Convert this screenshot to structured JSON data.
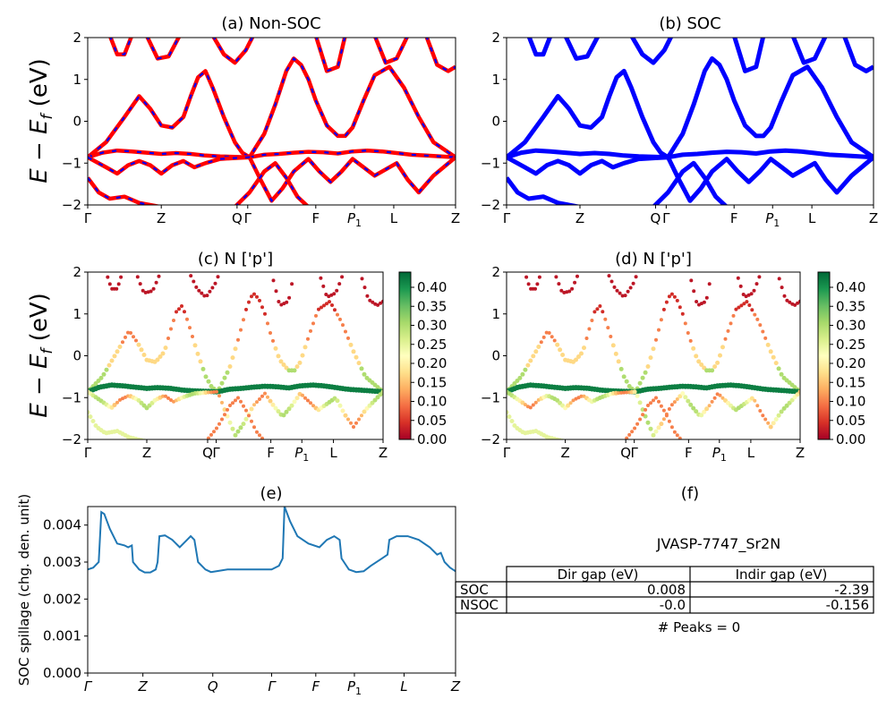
{
  "chart_data": [
    {
      "id": "a",
      "type": "line",
      "title": "(a) Non-SOC",
      "ylabel_main": "E − E",
      "ylabel_sub": "f",
      "ylabel_unit": " (eV)",
      "ylim": [
        -2,
        2
      ],
      "yticks": [
        "2",
        "1",
        "0",
        "−1",
        "−2"
      ],
      "kpath": [
        "Γ",
        "Z",
        "Q",
        "Γ",
        "F",
        "P1",
        "L",
        "Z"
      ],
      "colors": {
        "up": "#ff0000",
        "dn": "#0000ff"
      },
      "bands": [
        [
          [
            0,
            -0.86
          ],
          [
            0.05,
            -0.5
          ],
          [
            0.1,
            0.1
          ],
          [
            0.14,
            0.6
          ],
          [
            0.17,
            0.3
          ],
          [
            0.2,
            -0.1
          ],
          [
            0.23,
            -0.15
          ],
          [
            0.26,
            0.1
          ],
          [
            0.28,
            0.6
          ],
          [
            0.3,
            1.05
          ],
          [
            0.32,
            1.2
          ],
          [
            0.34,
            0.8
          ],
          [
            0.37,
            0.1
          ],
          [
            0.4,
            -0.5
          ],
          [
            0.42,
            -0.75
          ],
          [
            0.44,
            -0.86
          ],
          [
            0.48,
            -0.3
          ],
          [
            0.51,
            0.4
          ],
          [
            0.54,
            1.2
          ],
          [
            0.56,
            1.5
          ],
          [
            0.58,
            1.35
          ],
          [
            0.6,
            1.0
          ],
          [
            0.62,
            0.5
          ],
          [
            0.65,
            -0.1
          ],
          [
            0.68,
            -0.35
          ],
          [
            0.7,
            -0.35
          ],
          [
            0.72,
            -0.15
          ],
          [
            0.75,
            0.5
          ],
          [
            0.78,
            1.1
          ],
          [
            0.82,
            1.3
          ],
          [
            0.86,
            0.8
          ],
          [
            0.9,
            0.1
          ],
          [
            0.94,
            -0.5
          ],
          [
            1,
            -0.86
          ]
        ],
        [
          [
            0,
            -0.86
          ],
          [
            0.04,
            -0.75
          ],
          [
            0.08,
            -0.7
          ],
          [
            0.12,
            -0.72
          ],
          [
            0.16,
            -0.75
          ],
          [
            0.2,
            -0.78
          ],
          [
            0.24,
            -0.76
          ],
          [
            0.28,
            -0.78
          ],
          [
            0.32,
            -0.82
          ],
          [
            0.36,
            -0.84
          ],
          [
            0.4,
            -0.85
          ],
          [
            0.44,
            -0.86
          ],
          [
            0.48,
            -0.8
          ],
          [
            0.52,
            -0.78
          ],
          [
            0.56,
            -0.75
          ],
          [
            0.6,
            -0.73
          ],
          [
            0.64,
            -0.74
          ],
          [
            0.68,
            -0.77
          ],
          [
            0.72,
            -0.72
          ],
          [
            0.76,
            -0.7
          ],
          [
            0.8,
            -0.72
          ],
          [
            0.84,
            -0.76
          ],
          [
            0.88,
            -0.8
          ],
          [
            0.92,
            -0.82
          ],
          [
            0.96,
            -0.84
          ],
          [
            1,
            -0.86
          ]
        ],
        [
          [
            0,
            -0.86
          ],
          [
            0.05,
            -1.1
          ],
          [
            0.08,
            -1.25
          ],
          [
            0.11,
            -1.05
          ],
          [
            0.14,
            -0.95
          ],
          [
            0.17,
            -1.05
          ],
          [
            0.2,
            -1.25
          ],
          [
            0.23,
            -1.05
          ],
          [
            0.26,
            -0.95
          ],
          [
            0.29,
            -1.1
          ],
          [
            0.32,
            -1.0
          ],
          [
            0.36,
            -0.9
          ],
          [
            0.4,
            -0.88
          ],
          [
            0.44,
            -0.86
          ],
          [
            0.47,
            -1.4
          ],
          [
            0.5,
            -1.9
          ],
          [
            0.53,
            -1.6
          ],
          [
            0.56,
            -1.2
          ],
          [
            0.6,
            -0.9
          ],
          [
            0.63,
            -1.2
          ],
          [
            0.66,
            -1.45
          ],
          [
            0.69,
            -1.2
          ],
          [
            0.72,
            -0.9
          ],
          [
            0.75,
            -1.1
          ],
          [
            0.78,
            -1.3
          ],
          [
            0.81,
            -1.15
          ],
          [
            0.84,
            -1.0
          ],
          [
            0.87,
            -1.4
          ],
          [
            0.9,
            -1.7
          ],
          [
            0.94,
            -1.3
          ],
          [
            1,
            -0.86
          ]
        ],
        [
          [
            0,
            -1.35
          ],
          [
            0.03,
            -1.7
          ],
          [
            0.06,
            -1.85
          ],
          [
            0.1,
            -1.8
          ],
          [
            0.14,
            -1.95
          ],
          [
            0.2,
            -2.05
          ]
        ],
        [
          [
            0.4,
            -2.05
          ],
          [
            0.44,
            -1.7
          ],
          [
            0.48,
            -1.2
          ],
          [
            0.51,
            -1.0
          ],
          [
            0.54,
            -1.35
          ],
          [
            0.57,
            -1.8
          ],
          [
            0.6,
            -2.05
          ]
        ],
        [
          [
            0.06,
            2.05
          ],
          [
            0.08,
            1.6
          ],
          [
            0.1,
            1.6
          ],
          [
            0.12,
            2.05
          ]
        ],
        [
          [
            0.16,
            2.05
          ],
          [
            0.19,
            1.5
          ],
          [
            0.22,
            1.55
          ],
          [
            0.25,
            2.05
          ]
        ],
        [
          [
            0.34,
            2.05
          ],
          [
            0.37,
            1.6
          ],
          [
            0.4,
            1.4
          ],
          [
            0.43,
            1.7
          ],
          [
            0.45,
            2.05
          ]
        ],
        [
          [
            0.62,
            2.05
          ],
          [
            0.65,
            1.2
          ],
          [
            0.68,
            1.3
          ],
          [
            0.7,
            2.05
          ]
        ],
        [
          [
            0.78,
            2.05
          ],
          [
            0.81,
            1.4
          ],
          [
            0.84,
            1.5
          ],
          [
            0.87,
            2.05
          ]
        ],
        [
          [
            0.92,
            2.05
          ],
          [
            0.95,
            1.35
          ],
          [
            0.98,
            1.2
          ],
          [
            1,
            1.3
          ]
        ]
      ]
    },
    {
      "id": "b",
      "type": "line",
      "title": "(b) SOC",
      "ylim": [
        -2,
        2
      ],
      "yticks": [
        "2",
        "1",
        "0",
        "−1",
        "−2"
      ],
      "kpath": [
        "Γ",
        "Z",
        "Q",
        "Γ",
        "F",
        "P1",
        "L",
        "Z"
      ],
      "colors": {
        "line": "#0000ff"
      },
      "bands": "same as (a)"
    },
    {
      "id": "c",
      "type": "scatter",
      "title": "(c)  N ['p']",
      "ylim": [
        -2,
        2
      ],
      "yticks": [
        "2",
        "1",
        "0",
        "−1",
        "−2"
      ],
      "kpath": [
        "Γ",
        "Z",
        "Q",
        "Γ",
        "F",
        "P1",
        "L",
        "Z"
      ],
      "colorbar": {
        "cmap": "RdYlGn",
        "ticks": [
          "0.00",
          "0.05",
          "0.10",
          "0.15",
          "0.20",
          "0.25",
          "0.30",
          "0.35",
          "0.40"
        ],
        "max": 0.44
      },
      "band_weights": [
        0.05,
        0.42,
        0.3,
        0.25,
        0.1,
        0.02,
        0.02,
        0.02,
        0.02,
        0.02,
        0.02
      ]
    },
    {
      "id": "d",
      "type": "scatter",
      "title": "(d) N ['p']",
      "ylim": [
        -2,
        2
      ],
      "yticks": [
        "2",
        "1",
        "0",
        "−1",
        "−2"
      ],
      "kpath": [
        "Γ",
        "Z",
        "Q",
        "Γ",
        "F",
        "P1",
        "L",
        "Z"
      ],
      "colorbar": {
        "cmap": "RdYlGn",
        "ticks": [
          "0.00",
          "0.05",
          "0.10",
          "0.15",
          "0.20",
          "0.25",
          "0.30",
          "0.35",
          "0.40"
        ],
        "max": 0.44
      }
    },
    {
      "id": "e",
      "type": "line",
      "title": "(e)",
      "ylabel": "SOC spillage (chg. den. unit)",
      "ylim": [
        0,
        0.0045
      ],
      "yticks": [
        "0.000",
        "0.001",
        "0.002",
        "0.003",
        "0.004"
      ],
      "kpath": [
        "Γ",
        "Z",
        "Q",
        "Γ",
        "F",
        "P1",
        "L",
        "Z"
      ],
      "kpath_italic": true,
      "color": "#1f77b4",
      "points": [
        [
          0,
          0.0028
        ],
        [
          0.015,
          0.00285
        ],
        [
          0.03,
          0.003
        ],
        [
          0.037,
          0.00435
        ],
        [
          0.045,
          0.0043
        ],
        [
          0.06,
          0.0039
        ],
        [
          0.08,
          0.0035
        ],
        [
          0.1,
          0.00345
        ],
        [
          0.11,
          0.0034
        ],
        [
          0.12,
          0.00345
        ],
        [
          0.123,
          0.003
        ],
        [
          0.14,
          0.0028
        ],
        [
          0.155,
          0.00272
        ],
        [
          0.17,
          0.00272
        ],
        [
          0.185,
          0.0028
        ],
        [
          0.19,
          0.003
        ],
        [
          0.195,
          0.0037
        ],
        [
          0.21,
          0.00372
        ],
        [
          0.23,
          0.0036
        ],
        [
          0.25,
          0.0034
        ],
        [
          0.27,
          0.0036
        ],
        [
          0.28,
          0.0037
        ],
        [
          0.29,
          0.0036
        ],
        [
          0.3,
          0.003
        ],
        [
          0.32,
          0.0028
        ],
        [
          0.335,
          0.00273
        ],
        [
          0.35,
          0.00275
        ],
        [
          0.38,
          0.0028
        ],
        [
          0.42,
          0.0028
        ],
        [
          0.47,
          0.0028
        ],
        [
          0.5,
          0.0028
        ],
        [
          0.52,
          0.0029
        ],
        [
          0.53,
          0.0031
        ],
        [
          0.535,
          0.0045
        ],
        [
          0.55,
          0.0041
        ],
        [
          0.57,
          0.0037
        ],
        [
          0.6,
          0.0035
        ],
        [
          0.63,
          0.0034
        ],
        [
          0.65,
          0.0036
        ],
        [
          0.67,
          0.0037
        ],
        [
          0.685,
          0.0036
        ],
        [
          0.69,
          0.0031
        ],
        [
          0.71,
          0.0028
        ],
        [
          0.73,
          0.00273
        ],
        [
          0.75,
          0.00275
        ],
        [
          0.77,
          0.0029
        ],
        [
          0.8,
          0.0031
        ],
        [
          0.815,
          0.0032
        ],
        [
          0.82,
          0.0036
        ],
        [
          0.84,
          0.0037
        ],
        [
          0.87,
          0.0037
        ],
        [
          0.9,
          0.0036
        ],
        [
          0.93,
          0.0034
        ],
        [
          0.95,
          0.0032
        ],
        [
          0.96,
          0.00325
        ],
        [
          0.97,
          0.003
        ],
        [
          0.985,
          0.00285
        ],
        [
          1,
          0.00275
        ]
      ]
    }
  ],
  "panel_f": {
    "title": "(f)",
    "material": "JVASP-7747_Sr2N",
    "table": {
      "headers": [
        "Dir gap (eV)",
        "Indir gap (eV)"
      ],
      "rows": [
        {
          "label": "SOC",
          "dir": "0.008",
          "indir": "-2.39"
        },
        {
          "label": "NSOC",
          "dir": "-0.0",
          "indir": "-0.156"
        }
      ]
    },
    "peaks": "# Peaks = 0"
  }
}
